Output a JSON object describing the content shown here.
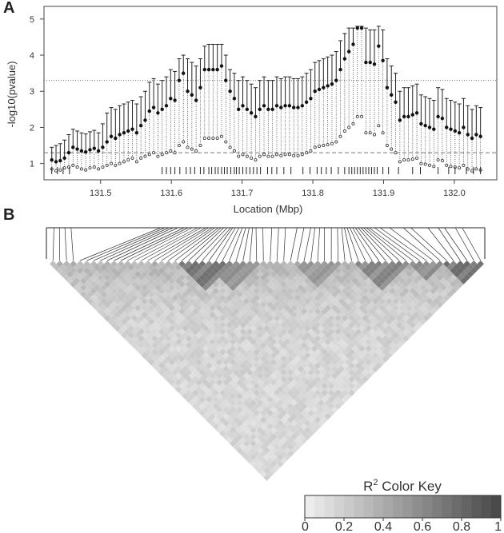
{
  "panel_a": {
    "label": "A",
    "chart_data": {
      "type": "scatter",
      "title": "",
      "xlabel": "Location (Mbp)",
      "ylabel": "-log10(pvalue)",
      "xlim": [
        131.42,
        132.06
      ],
      "ylim": [
        0.55,
        5.35
      ],
      "x_ticks": [
        "131.5",
        "131.6",
        "131.7",
        "131.8",
        "131.9",
        "132.0"
      ],
      "x_tick_values": [
        131.5,
        131.6,
        131.7,
        131.8,
        131.9,
        132.0
      ],
      "y_ticks": [
        "1",
        "2",
        "3",
        "4",
        "5"
      ],
      "y_tick_values": [
        1,
        2,
        3,
        4,
        5
      ],
      "reference_lines": [
        {
          "style": "dotted",
          "y": 3.3
        },
        {
          "style": "dashed",
          "y": 1.3
        }
      ],
      "series": [
        {
          "marker": "filled-circle",
          "x": [
            131.431,
            131.437,
            131.443,
            131.449,
            131.455,
            131.461,
            131.467,
            131.473,
            131.479,
            131.485,
            131.491,
            131.497,
            131.503,
            131.509,
            131.515,
            131.521,
            131.527,
            131.533,
            131.539,
            131.545,
            131.551,
            131.557,
            131.563,
            131.569,
            131.575,
            131.581,
            131.587,
            131.593,
            131.599,
            131.605,
            131.611,
            131.617,
            131.623,
            131.629,
            131.635,
            131.641,
            131.647,
            131.653,
            131.659,
            131.665,
            131.671,
            131.677,
            131.683,
            131.689,
            131.695,
            131.701,
            131.707,
            131.713,
            131.719,
            131.725,
            131.731,
            131.737,
            131.743,
            131.749,
            131.755,
            131.761,
            131.767,
            131.773,
            131.779,
            131.785,
            131.791,
            131.797,
            131.803,
            131.809,
            131.815,
            131.821,
            131.827,
            131.833,
            131.839,
            131.845,
            131.851,
            131.857,
            131.863,
            131.869,
            131.875,
            131.881,
            131.887,
            131.893,
            131.899,
            131.905,
            131.911,
            131.917,
            131.923,
            131.929,
            131.935,
            131.941,
            131.947,
            131.953,
            131.959,
            131.965,
            131.971,
            131.977,
            131.983,
            131.989,
            131.995,
            132.001,
            132.007,
            132.013,
            132.019,
            132.025,
            132.031,
            132.037
          ],
          "values": [
            1.1,
            1.05,
            1.08,
            1.15,
            1.3,
            1.45,
            1.4,
            1.35,
            1.32,
            1.38,
            1.42,
            1.35,
            1.45,
            1.6,
            1.75,
            1.7,
            1.8,
            1.85,
            1.9,
            1.95,
            1.85,
            2.05,
            2.2,
            2.45,
            2.55,
            2.4,
            2.5,
            2.6,
            2.8,
            2.75,
            3.3,
            3.5,
            3.0,
            2.9,
            2.75,
            3.1,
            3.6,
            3.6,
            3.6,
            3.6,
            3.7,
            3.3,
            3.0,
            2.8,
            2.5,
            2.6,
            2.5,
            2.4,
            2.3,
            2.5,
            2.6,
            2.5,
            2.5,
            2.6,
            2.55,
            2.6,
            2.6,
            2.55,
            2.55,
            2.6,
            2.7,
            2.8,
            3.0,
            3.05,
            3.1,
            3.15,
            3.2,
            3.3,
            3.6,
            3.9,
            4.1,
            4.3,
            4.75,
            4.75,
            3.8,
            3.8,
            3.75,
            4.25,
            3.85,
            3.1,
            2.9,
            2.7,
            2.2,
            2.3,
            2.3,
            2.35,
            2.4,
            2.1,
            2.05,
            2.0,
            1.95,
            2.3,
            2.25,
            2.0,
            1.95,
            1.9,
            1.85,
            2.0,
            1.8,
            1.7,
            1.8,
            1.75
          ],
          "upper": [
            1.45,
            1.5,
            1.55,
            1.65,
            1.8,
            1.95,
            1.9,
            1.85,
            1.82,
            1.88,
            1.92,
            1.85,
            2.1,
            2.4,
            2.55,
            2.5,
            2.6,
            2.65,
            2.7,
            2.75,
            2.65,
            2.85,
            3.0,
            3.25,
            3.35,
            3.2,
            3.3,
            3.4,
            3.6,
            3.55,
            3.9,
            4.0,
            3.9,
            3.8,
            3.7,
            3.9,
            4.25,
            4.3,
            4.3,
            4.3,
            4.3,
            4.0,
            3.6,
            3.5,
            3.3,
            3.4,
            3.3,
            3.2,
            3.1,
            3.3,
            3.4,
            3.3,
            3.3,
            3.4,
            3.35,
            3.4,
            3.4,
            3.35,
            3.35,
            3.4,
            3.5,
            3.6,
            3.8,
            3.85,
            3.9,
            3.95,
            4.0,
            4.1,
            4.4,
            4.6,
            4.75,
            4.75,
            4.8,
            4.8,
            4.75,
            4.7,
            4.7,
            4.8,
            4.7,
            3.9,
            3.7,
            3.5,
            3.0,
            3.1,
            3.1,
            3.15,
            3.2,
            2.9,
            2.85,
            2.8,
            2.75,
            3.1,
            3.05,
            2.8,
            2.75,
            2.7,
            2.65,
            2.8,
            2.6,
            2.5,
            2.6,
            2.55
          ],
          "lower": [
            0.85,
            0.8,
            0.82,
            0.88,
            0.9,
            0.95,
            0.9,
            0.85,
            0.82,
            0.88,
            0.9,
            0.85,
            0.9,
            0.95,
            1.0,
            0.95,
            1.0,
            1.05,
            1.1,
            1.15,
            1.05,
            1.15,
            1.2,
            1.25,
            1.3,
            1.2,
            1.25,
            1.3,
            1.35,
            1.3,
            1.5,
            1.6,
            1.45,
            1.4,
            1.35,
            1.5,
            1.7,
            1.7,
            1.7,
            1.7,
            1.75,
            1.6,
            1.45,
            1.35,
            1.2,
            1.25,
            1.2,
            1.15,
            1.1,
            1.2,
            1.25,
            1.2,
            1.2,
            1.25,
            1.22,
            1.25,
            1.25,
            1.22,
            1.22,
            1.25,
            1.3,
            1.35,
            1.45,
            1.48,
            1.5,
            1.52,
            1.55,
            1.6,
            1.75,
            1.9,
            2.0,
            2.1,
            2.3,
            2.3,
            1.85,
            1.85,
            1.8,
            2.05,
            1.85,
            1.5,
            1.4,
            1.3,
            1.05,
            1.1,
            1.1,
            1.12,
            1.15,
            1.0,
            0.98,
            0.95,
            0.92,
            1.1,
            1.08,
            0.95,
            0.92,
            0.9,
            0.88,
            0.95,
            0.85,
            0.8,
            0.85,
            0.82
          ]
        }
      ],
      "snp_positions": [
        131.431,
        131.439,
        131.447,
        131.456,
        131.587,
        131.593,
        131.599,
        131.605,
        131.612,
        131.621,
        131.627,
        131.633,
        131.641,
        131.646,
        131.653,
        131.657,
        131.662,
        131.666,
        131.671,
        131.675,
        131.679,
        131.684,
        131.689,
        131.692,
        131.696,
        131.701,
        131.706,
        131.711,
        131.716,
        131.721,
        131.726,
        131.736,
        131.742,
        131.749,
        131.759,
        131.769,
        131.786,
        131.796,
        131.806,
        131.812,
        131.819,
        131.826,
        131.836,
        131.845,
        131.851,
        131.855,
        131.859,
        131.863,
        131.867,
        131.871,
        131.875,
        131.879,
        131.883,
        131.887,
        131.891,
        131.899,
        131.907,
        131.921,
        131.941,
        131.952,
        131.977,
        131.992,
        132.001,
        132.017,
        132.027,
        132.037
      ]
    }
  },
  "panel_b": {
    "label": "B",
    "chart_data": {
      "type": "heatmap",
      "title": "",
      "matrix_size": 64,
      "colorbar": {
        "title_prefix": "R",
        "title_sup": "2",
        "title_suffix": " Color Key",
        "ticks": [
          "0",
          "0.2",
          "0.4",
          "0.6",
          "0.8",
          "1"
        ],
        "tick_values": [
          0,
          0.2,
          0.4,
          0.6,
          0.8,
          1
        ],
        "color_low": "#ececec",
        "color_high": "#4a4a4a",
        "bins": 20
      },
      "high_ld_blocks": [
        {
          "from": 19,
          "to": 26,
          "r2": 0.78
        },
        {
          "from": 23,
          "to": 30,
          "r2": 0.6
        },
        {
          "from": 36,
          "to": 42,
          "r2": 0.55
        },
        {
          "from": 45,
          "to": 52,
          "r2": 0.68
        },
        {
          "from": 53,
          "to": 57,
          "r2": 0.62
        },
        {
          "from": 58,
          "to": 63,
          "r2": 0.82
        }
      ]
    }
  }
}
